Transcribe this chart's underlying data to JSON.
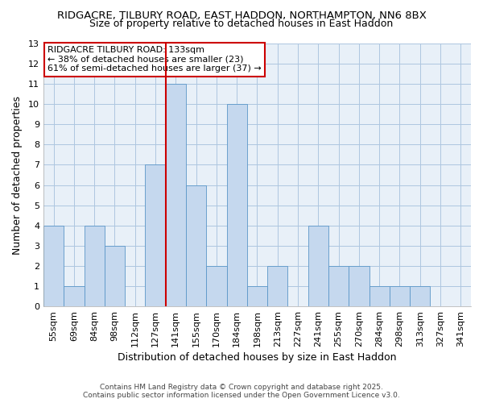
{
  "title": "RIDGACRE, TILBURY ROAD, EAST HADDON, NORTHAMPTON, NN6 8BX",
  "subtitle": "Size of property relative to detached houses in East Haddon",
  "xlabel": "Distribution of detached houses by size in East Haddon",
  "ylabel": "Number of detached properties",
  "categories": [
    "55sqm",
    "69sqm",
    "84sqm",
    "98sqm",
    "112sqm",
    "127sqm",
    "141sqm",
    "155sqm",
    "170sqm",
    "184sqm",
    "198sqm",
    "213sqm",
    "227sqm",
    "241sqm",
    "255sqm",
    "270sqm",
    "284sqm",
    "298sqm",
    "313sqm",
    "327sqm",
    "341sqm"
  ],
  "values": [
    4,
    1,
    4,
    3,
    0,
    7,
    11,
    6,
    2,
    10,
    1,
    2,
    0,
    4,
    2,
    2,
    1,
    1,
    1,
    0,
    0
  ],
  "bar_color": "#c5d8ee",
  "bar_edge_color": "#5a96c8",
  "vline_x_index": 6,
  "vline_color": "#cc0000",
  "annotation_box_text": "RIDGACRE TILBURY ROAD: 133sqm\n← 38% of detached houses are smaller (23)\n61% of semi-detached houses are larger (37) →",
  "annotation_box_edge_color": "#cc0000",
  "ylim": [
    0,
    13
  ],
  "yticks": [
    0,
    1,
    2,
    3,
    4,
    5,
    6,
    7,
    8,
    9,
    10,
    11,
    12,
    13
  ],
  "fig_bg_color": "#ffffff",
  "plot_bg_color": "#e8f0f8",
  "grid_color": "#aec6e0",
  "footer": "Contains HM Land Registry data © Crown copyright and database right 2025.\nContains public sector information licensed under the Open Government Licence v3.0.",
  "title_fontsize": 9.5,
  "subtitle_fontsize": 9,
  "xlabel_fontsize": 9,
  "ylabel_fontsize": 9,
  "tick_fontsize": 8,
  "annotation_fontsize": 8,
  "footer_fontsize": 6.5
}
